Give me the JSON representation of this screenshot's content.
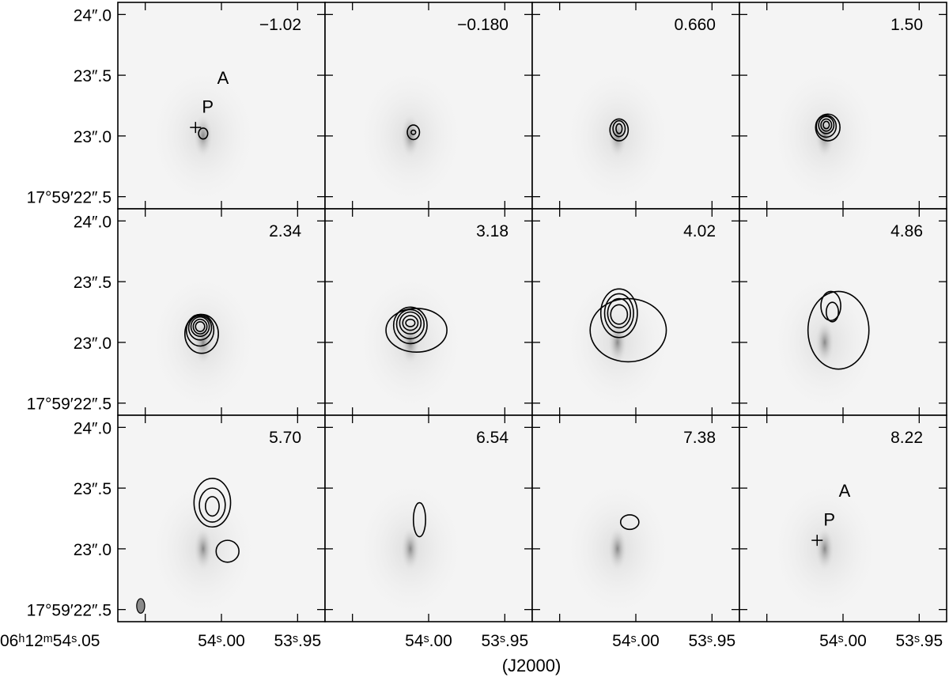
{
  "chart_data": {
    "type": "channel_map",
    "grid": {
      "rows": 3,
      "cols": 4
    },
    "panels": [
      {
        "label": "−1.02"
      },
      {
        "label": "−0.180"
      },
      {
        "label": "0.660"
      },
      {
        "label": "1.50"
      },
      {
        "label": "2.34"
      },
      {
        "label": "3.18"
      },
      {
        "label": "4.02"
      },
      {
        "label": "4.86"
      },
      {
        "label": "5.70"
      },
      {
        "label": "6.54"
      },
      {
        "label": "7.38"
      },
      {
        "label": "8.22"
      }
    ],
    "y_ticks": [
      "24″.0",
      "23″.5",
      "23″.0",
      "17°59′22″.5"
    ],
    "y_tick_values": [
      24.0,
      23.5,
      23.0,
      22.5
    ],
    "ylim": [
      22.4,
      24.1
    ],
    "x_ticks_first": [
      "06ʰ12ᵐ54ˢ.05",
      "54ˢ.00",
      "53ˢ.95"
    ],
    "x_ticks": [
      "54ˢ.00",
      "53ˢ.95"
    ],
    "x_tick_values": [
      54.05,
      54.0,
      53.95
    ],
    "xlim": [
      54.068,
      53.932
    ],
    "xlabel": "(J2000)",
    "markers": {
      "cross": {
        "ra": 54.017,
        "dec": 23.07
      },
      "P": {
        "ra": 54.009,
        "dec": 23.19,
        "text": "P"
      },
      "A": {
        "ra": 53.999,
        "dec": 23.43,
        "text": "A"
      }
    },
    "beam": {
      "ra": 54.053,
      "dec": 22.53,
      "major": 0.1,
      "minor": 0.06
    },
    "background_source": {
      "ra": 54.012,
      "dec": 23.0
    },
    "contours": [
      [
        {
          "ra": 54.012,
          "dec": 23.02,
          "sx": 0.003,
          "sy": 0.045
        }
      ],
      [
        {
          "ra": 54.01,
          "dec": 23.03,
          "sx": 0.004,
          "sy": 0.06
        },
        {
          "ra": 54.01,
          "dec": 23.03,
          "sx": 0.0015,
          "sy": 0.018
        }
      ],
      [
        {
          "ra": 54.011,
          "dec": 23.05,
          "sx": 0.006,
          "sy": 0.09
        },
        {
          "ra": 54.011,
          "dec": 23.06,
          "sx": 0.004,
          "sy": 0.065
        },
        {
          "ra": 54.011,
          "dec": 23.06,
          "sx": 0.002,
          "sy": 0.04
        }
      ],
      [
        {
          "ra": 54.01,
          "dec": 23.07,
          "sx": 0.008,
          "sy": 0.11
        },
        {
          "ra": 54.011,
          "dec": 23.08,
          "sx": 0.0065,
          "sy": 0.09
        },
        {
          "ra": 54.011,
          "dec": 23.09,
          "sx": 0.005,
          "sy": 0.07
        },
        {
          "ra": 54.011,
          "dec": 23.09,
          "sx": 0.0035,
          "sy": 0.05
        },
        {
          "ra": 54.011,
          "dec": 23.09,
          "sx": 0.002,
          "sy": 0.03
        }
      ],
      [
        {
          "ra": 54.013,
          "dec": 23.07,
          "sx": 0.011,
          "sy": 0.16
        },
        {
          "ra": 54.014,
          "dec": 23.1,
          "sx": 0.009,
          "sy": 0.13
        },
        {
          "ra": 54.014,
          "dec": 23.12,
          "sx": 0.0075,
          "sy": 0.1
        },
        {
          "ra": 54.014,
          "dec": 23.13,
          "sx": 0.006,
          "sy": 0.08
        },
        {
          "ra": 54.014,
          "dec": 23.13,
          "sx": 0.0045,
          "sy": 0.06
        },
        {
          "ra": 54.014,
          "dec": 23.13,
          "sx": 0.003,
          "sy": 0.04
        }
      ],
      [
        {
          "ra": 54.008,
          "dec": 23.1,
          "sx": 0.02,
          "sy": 0.18
        },
        {
          "ra": 54.012,
          "dec": 23.14,
          "sx": 0.011,
          "sy": 0.15
        },
        {
          "ra": 54.012,
          "dec": 23.15,
          "sx": 0.009,
          "sy": 0.12
        },
        {
          "ra": 54.012,
          "dec": 23.16,
          "sx": 0.007,
          "sy": 0.09
        },
        {
          "ra": 54.012,
          "dec": 23.16,
          "sx": 0.005,
          "sy": 0.06
        },
        {
          "ra": 54.012,
          "dec": 23.16,
          "sx": 0.003,
          "sy": 0.03
        }
      ],
      [
        {
          "ra": 54.005,
          "dec": 23.1,
          "sx": 0.025,
          "sy": 0.26
        },
        {
          "ra": 54.011,
          "dec": 23.24,
          "sx": 0.012,
          "sy": 0.2
        },
        {
          "ra": 54.011,
          "dec": 23.24,
          "sx": 0.0095,
          "sy": 0.16
        },
        {
          "ra": 54.011,
          "dec": 23.24,
          "sx": 0.0075,
          "sy": 0.12
        },
        {
          "ra": 54.011,
          "dec": 23.23,
          "sx": 0.0055,
          "sy": 0.08
        }
      ],
      [
        {
          "ra": 54.003,
          "dec": 23.1,
          "sx": 0.02,
          "sy": 0.32
        },
        {
          "ra": 54.008,
          "dec": 23.3,
          "sx": 0.0065,
          "sy": 0.12
        },
        {
          "ra": 54.007,
          "dec": 23.25,
          "sx": 0.004,
          "sy": 0.08
        }
      ],
      [
        {
          "ra": 54.006,
          "dec": 23.38,
          "sx": 0.012,
          "sy": 0.2
        },
        {
          "ra": 54.006,
          "dec": 23.36,
          "sx": 0.0085,
          "sy": 0.14
        },
        {
          "ra": 54.006,
          "dec": 23.35,
          "sx": 0.0045,
          "sy": 0.08
        },
        {
          "ra": 53.996,
          "dec": 22.98,
          "sx": 0.0075,
          "sy": 0.09
        }
      ],
      [
        {
          "ra": 54.006,
          "dec": 23.24,
          "sx": 0.004,
          "sy": 0.14
        }
      ],
      [
        {
          "ra": 54.004,
          "dec": 23.22,
          "sx": 0.006,
          "sy": 0.06
        }
      ],
      []
    ],
    "show_markers_in_panels": [
      0,
      11
    ],
    "show_beam_in_panels": [
      8
    ]
  }
}
